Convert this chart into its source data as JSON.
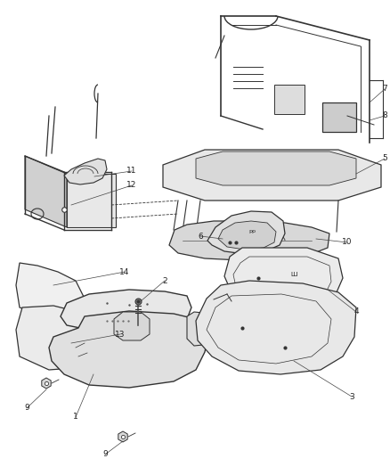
{
  "bg_color": "#ffffff",
  "line_color": "#333333",
  "label_color": "#222222",
  "fig_width": 4.38,
  "fig_height": 5.33,
  "dpi": 100
}
